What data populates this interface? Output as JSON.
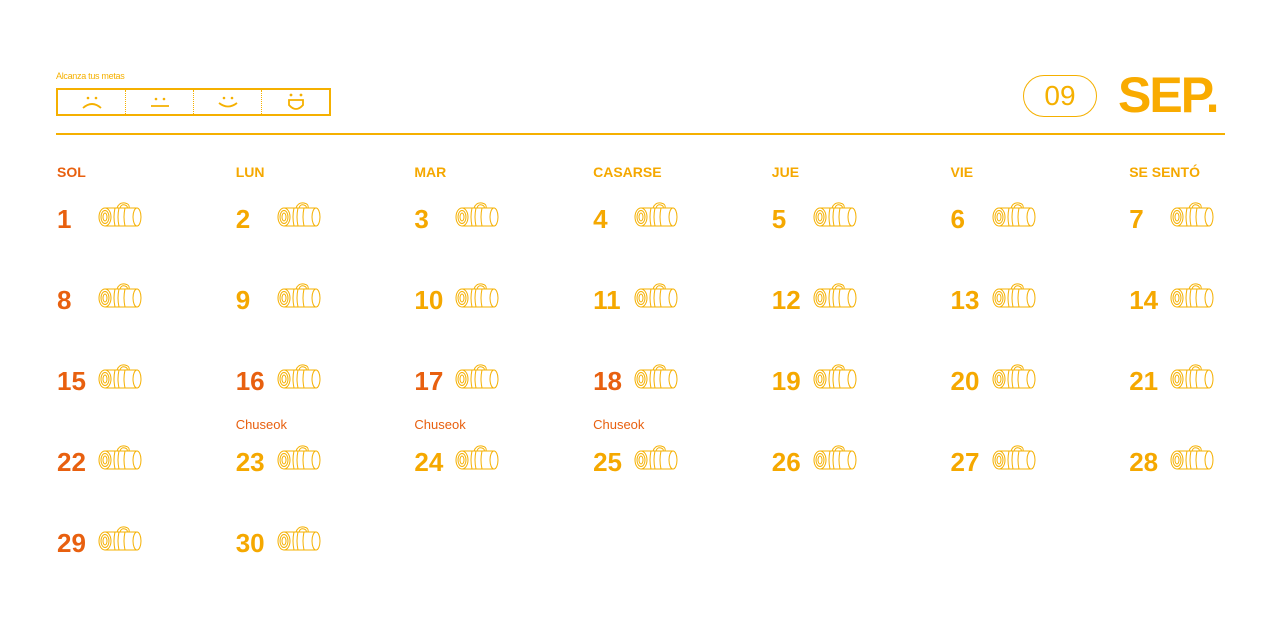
{
  "header": {
    "tagline": "Alcanza tus metas",
    "moods": [
      "sad-face-icon",
      "neutral-face-icon",
      "smile-face-icon",
      "laugh-face-icon"
    ],
    "month_number": "09",
    "month_name": "SEP."
  },
  "colors": {
    "accent": "#f5a800",
    "holiday": "#e8600f"
  },
  "weekdays": [
    "SOL",
    "LUN",
    "MAR",
    "CASARSE",
    "JUE",
    "VIE",
    "SE SENTÓ"
  ],
  "first_weekday": 0,
  "days_in_month": 30,
  "red_days": [
    16,
    17,
    18
  ],
  "holidays": {
    "16": "Chuseok",
    "17": "Chuseok",
    "18": "Chuseok"
  },
  "day_icon": "yoga-mat-icon"
}
